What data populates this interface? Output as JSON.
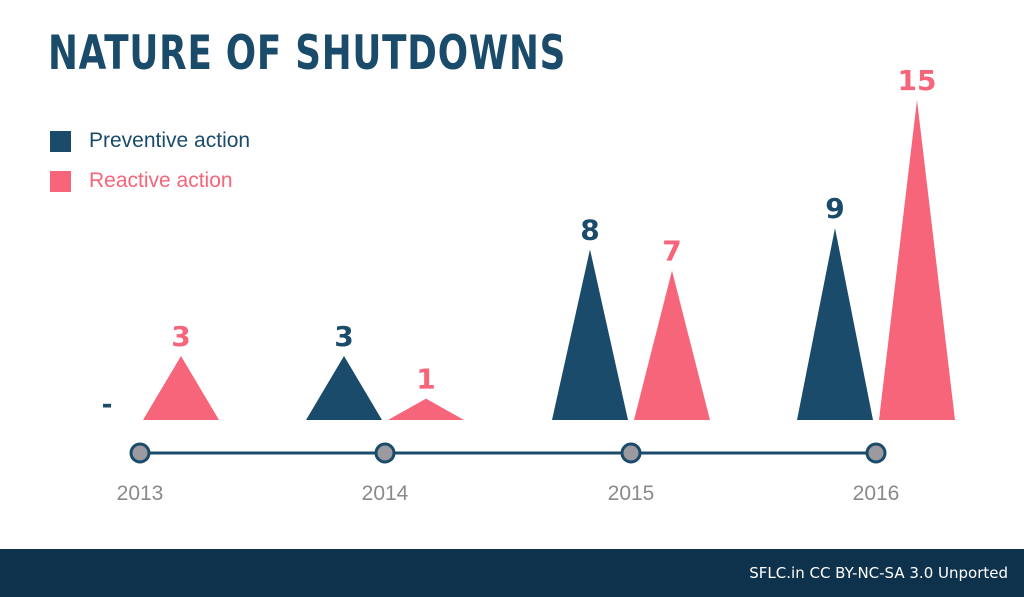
{
  "chart_data": {
    "type": "bar",
    "title": "NATURE OF SHUTDOWNS",
    "categories": [
      "2013",
      "2014",
      "2015",
      "2016"
    ],
    "series": [
      {
        "name": "Preventive action",
        "values": [
          null,
          3,
          8,
          9
        ],
        "labels": [
          "-",
          "3",
          "8",
          "9"
        ],
        "color": "#1b4b6a"
      },
      {
        "name": "Reactive action",
        "values": [
          3,
          1,
          7,
          15
        ],
        "labels": [
          "3",
          "1",
          "7",
          "15"
        ],
        "color": "#f6657a"
      }
    ],
    "ylim": [
      0,
      15
    ],
    "xlabel": "",
    "ylabel": "",
    "legend": "top-left"
  },
  "colors": {
    "preventive": "#1b4b6a",
    "reactive": "#f6657a",
    "timeline": "#1b4b6a",
    "node_fill": "#9a9a9f",
    "year_label": "#8a8a8a",
    "footer_bg": "#0f324c"
  },
  "footer": {
    "credit": "SFLC.in CC BY-NC-SA 3.0 Unported"
  }
}
